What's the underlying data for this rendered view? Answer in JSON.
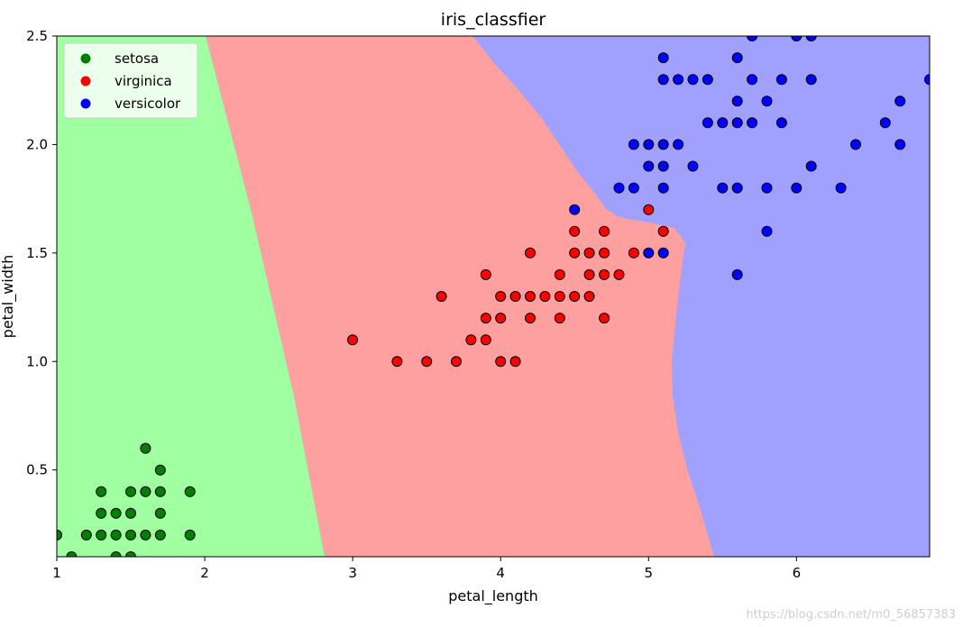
{
  "chart_data": {
    "type": "scatter",
    "title": "iris_classfier",
    "xlabel": "petal_length",
    "ylabel": "petal_width",
    "xlim": [
      1.0,
      6.9
    ],
    "ylim": [
      0.1,
      2.5
    ],
    "xticks": [
      "1",
      "2",
      "3",
      "4",
      "5",
      "6"
    ],
    "yticks": [
      "0.5",
      "1.0",
      "1.5",
      "2.0",
      "2.5"
    ],
    "legend_position": "top-left",
    "grid": false,
    "background": "decision regions",
    "regions": [
      {
        "class": "setosa",
        "color": "#a0ffa0"
      },
      {
        "class": "virginica",
        "color": "#ffa0a0"
      },
      {
        "class": "versicolor",
        "color": "#a0a0ff"
      }
    ],
    "series": [
      {
        "name": "setosa",
        "color": "#008000",
        "points": [
          [
            1.0,
            0.2
          ],
          [
            1.1,
            0.1
          ],
          [
            1.2,
            0.2
          ],
          [
            1.3,
            0.2
          ],
          [
            1.3,
            0.3
          ],
          [
            1.3,
            0.4
          ],
          [
            1.4,
            0.1
          ],
          [
            1.4,
            0.2
          ],
          [
            1.4,
            0.3
          ],
          [
            1.5,
            0.1
          ],
          [
            1.5,
            0.2
          ],
          [
            1.5,
            0.3
          ],
          [
            1.5,
            0.4
          ],
          [
            1.6,
            0.2
          ],
          [
            1.6,
            0.4
          ],
          [
            1.6,
            0.6
          ],
          [
            1.7,
            0.2
          ],
          [
            1.7,
            0.3
          ],
          [
            1.7,
            0.4
          ],
          [
            1.7,
            0.5
          ],
          [
            1.9,
            0.2
          ],
          [
            1.9,
            0.4
          ]
        ]
      },
      {
        "name": "virginica",
        "color": "#ff0000",
        "points": [
          [
            3.0,
            1.1
          ],
          [
            3.3,
            1.0
          ],
          [
            3.5,
            1.0
          ],
          [
            3.6,
            1.3
          ],
          [
            3.7,
            1.0
          ],
          [
            3.8,
            1.1
          ],
          [
            3.9,
            1.1
          ],
          [
            3.9,
            1.2
          ],
          [
            3.9,
            1.4
          ],
          [
            4.0,
            1.0
          ],
          [
            4.0,
            1.2
          ],
          [
            4.0,
            1.3
          ],
          [
            4.1,
            1.0
          ],
          [
            4.1,
            1.3
          ],
          [
            4.2,
            1.2
          ],
          [
            4.2,
            1.3
          ],
          [
            4.2,
            1.5
          ],
          [
            4.3,
            1.3
          ],
          [
            4.4,
            1.2
          ],
          [
            4.4,
            1.3
          ],
          [
            4.4,
            1.4
          ],
          [
            4.5,
            1.3
          ],
          [
            4.5,
            1.5
          ],
          [
            4.5,
            1.6
          ],
          [
            4.6,
            1.3
          ],
          [
            4.6,
            1.4
          ],
          [
            4.6,
            1.5
          ],
          [
            4.7,
            1.2
          ],
          [
            4.7,
            1.4
          ],
          [
            4.7,
            1.5
          ],
          [
            4.7,
            1.6
          ],
          [
            4.8,
            1.4
          ],
          [
            4.9,
            1.5
          ],
          [
            5.0,
            1.7
          ],
          [
            5.1,
            1.6
          ]
        ]
      },
      {
        "name": "versicolor",
        "color": "#0000ff",
        "points": [
          [
            4.5,
            1.7
          ],
          [
            4.8,
            1.8
          ],
          [
            4.9,
            1.8
          ],
          [
            4.9,
            2.0
          ],
          [
            5.0,
            1.5
          ],
          [
            5.0,
            1.9
          ],
          [
            5.0,
            2.0
          ],
          [
            5.1,
            1.5
          ],
          [
            5.1,
            1.8
          ],
          [
            5.1,
            1.9
          ],
          [
            5.1,
            2.0
          ],
          [
            5.1,
            2.3
          ],
          [
            5.1,
            2.4
          ],
          [
            5.2,
            2.0
          ],
          [
            5.2,
            2.3
          ],
          [
            5.3,
            1.9
          ],
          [
            5.3,
            2.3
          ],
          [
            5.4,
            2.1
          ],
          [
            5.4,
            2.3
          ],
          [
            5.5,
            1.8
          ],
          [
            5.5,
            2.1
          ],
          [
            5.6,
            1.4
          ],
          [
            5.6,
            1.8
          ],
          [
            5.6,
            2.1
          ],
          [
            5.6,
            2.2
          ],
          [
            5.6,
            2.4
          ],
          [
            5.7,
            2.1
          ],
          [
            5.7,
            2.3
          ],
          [
            5.7,
            2.5
          ],
          [
            5.8,
            1.6
          ],
          [
            5.8,
            1.8
          ],
          [
            5.8,
            2.2
          ],
          [
            5.9,
            2.1
          ],
          [
            5.9,
            2.3
          ],
          [
            6.0,
            1.8
          ],
          [
            6.0,
            2.5
          ],
          [
            6.1,
            1.9
          ],
          [
            6.1,
            2.3
          ],
          [
            6.1,
            2.5
          ],
          [
            6.3,
            1.8
          ],
          [
            6.4,
            2.0
          ],
          [
            6.6,
            2.1
          ],
          [
            6.7,
            2.0
          ],
          [
            6.7,
            2.2
          ],
          [
            6.9,
            2.3
          ]
        ]
      }
    ]
  },
  "watermark": "https://blog.csdn.net/m0_56857383"
}
